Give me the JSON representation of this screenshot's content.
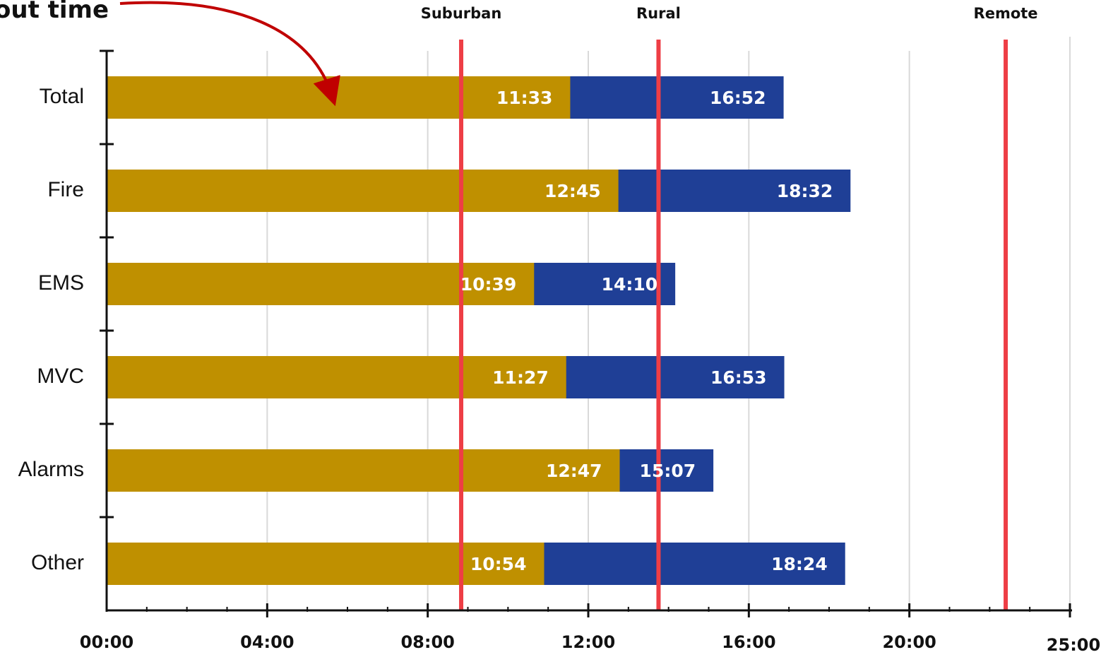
{
  "annotation": {
    "text": "out time"
  },
  "chart_data": {
    "type": "bar",
    "orientation": "horizontal",
    "value_format": "mm:ss",
    "xlim": [
      "00:00",
      "24:00"
    ],
    "x_ticks": [
      "00:00",
      "04:00",
      "08:00",
      "12:00",
      "16:00",
      "20:00"
    ],
    "x_end_label": "25:00",
    "grid": true,
    "categories": [
      "Total",
      "Fire",
      "EMS",
      "MVC",
      "Alarms",
      "Other"
    ],
    "series": [
      {
        "values": [
          "11:33",
          "12:45",
          "10:39",
          "11:27",
          "12:47",
          "10:54"
        ],
        "color": "#bf9000"
      },
      {
        "values": [
          "16:52",
          "18:32",
          "14:10",
          "16:53",
          "15:07",
          "18:24"
        ],
        "color": "#1f3f96"
      }
    ],
    "reference_lines": [
      {
        "label": "Suburban",
        "value": "08:50",
        "color": "#ee3e45"
      },
      {
        "label": "Rural",
        "value": "13:45",
        "color": "#ee3e45"
      },
      {
        "label": "Remote",
        "value": "22:24",
        "color": "#ee3e45"
      }
    ],
    "colors": {
      "axis": "#111111",
      "grid": "#d9d9d9",
      "arrow": "#c00000"
    }
  }
}
